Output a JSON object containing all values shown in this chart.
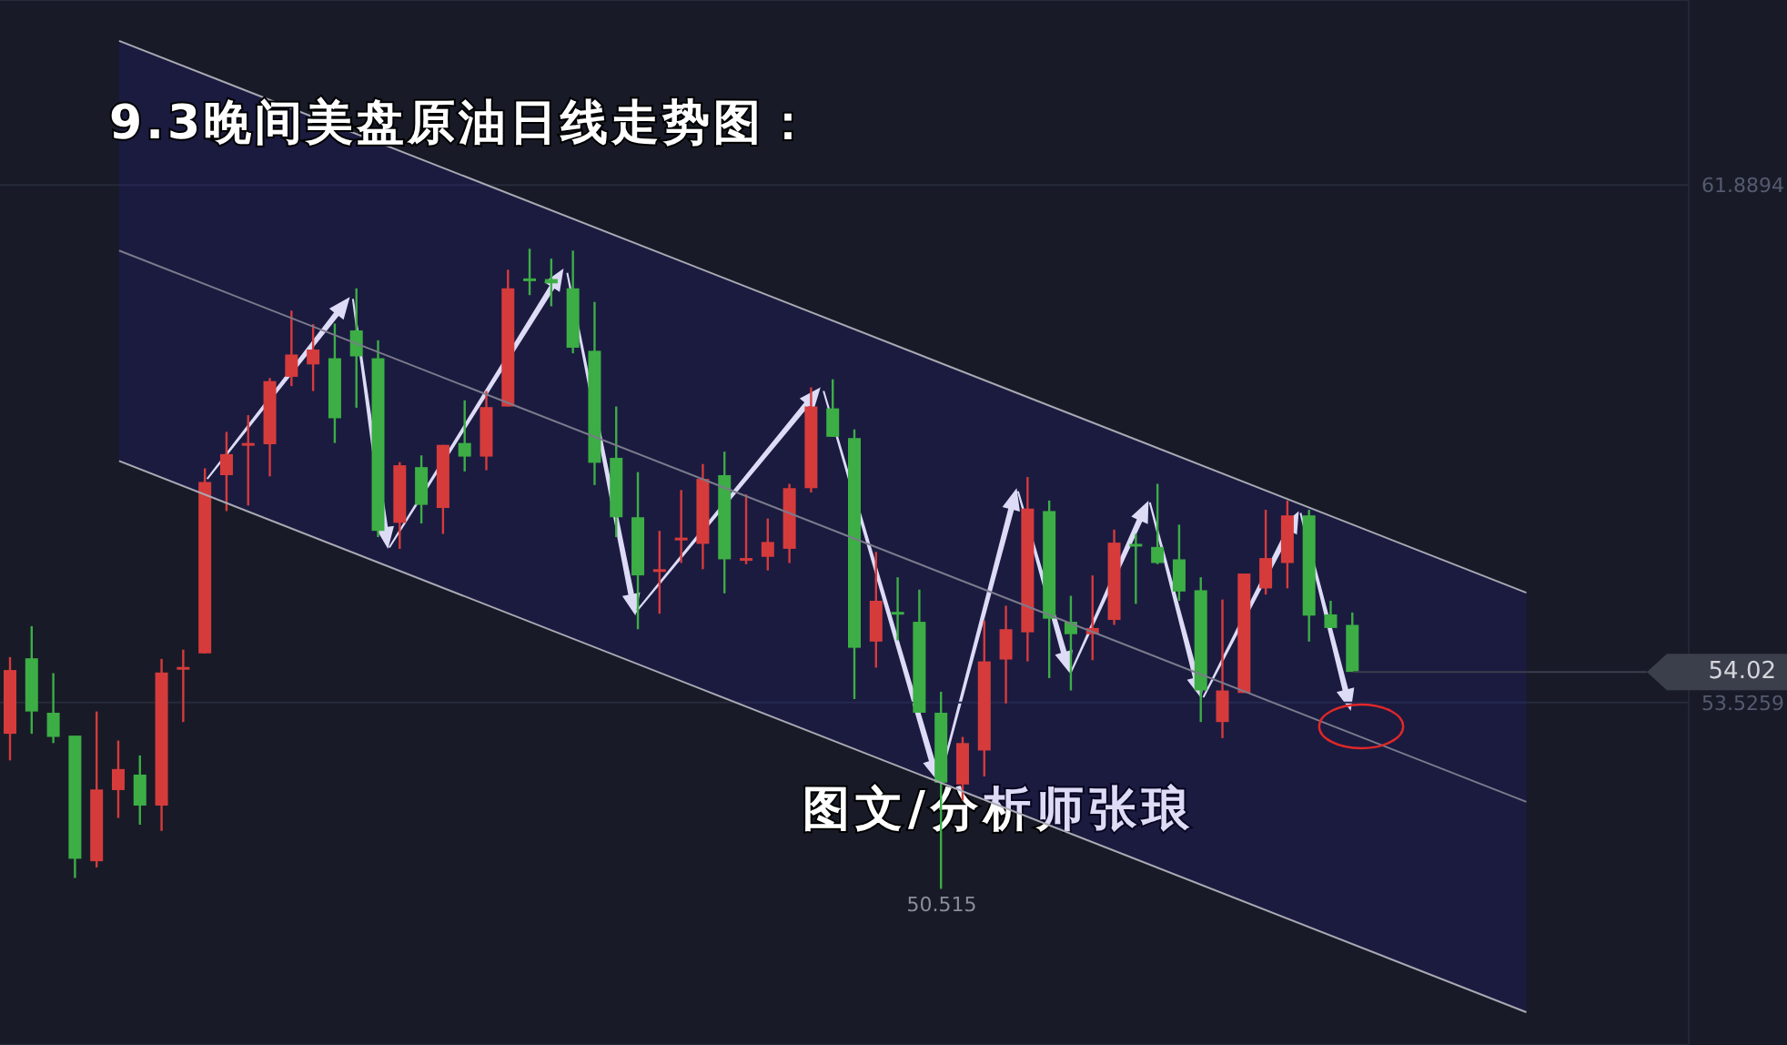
{
  "chart_data": {
    "type": "candlestick",
    "title": "9.3晚间美盘原油日线走势图：",
    "categories": [
      null,
      null,
      null,
      null,
      null,
      null,
      null,
      null,
      null,
      null,
      null,
      null,
      null,
      null,
      null,
      null,
      null,
      null,
      null,
      null,
      null,
      null,
      null,
      null,
      null,
      null,
      null,
      null,
      null,
      null,
      null,
      null,
      null,
      null,
      null,
      null,
      null,
      null,
      null,
      null,
      null,
      null,
      null,
      null,
      null,
      null,
      null,
      null,
      null,
      null,
      null,
      null,
      null,
      null,
      null,
      null,
      null,
      null,
      null,
      null,
      null,
      null,
      null,
      null,
      null,
      null,
      null,
      null,
      null,
      null,
      null,
      null,
      null,
      null,
      null,
      null,
      null,
      null
    ],
    "ohlc": [
      [
        53.02,
        54.26,
        52.59,
        54.05
      ],
      [
        54.24,
        54.76,
        53.02,
        53.38
      ],
      [
        53.36,
        54.0,
        52.87,
        52.97
      ],
      [
        52.99,
        52.99,
        50.69,
        51.0
      ],
      [
        50.96,
        53.38,
        50.86,
        52.12
      ],
      [
        52.11,
        52.91,
        51.66,
        52.45
      ],
      [
        52.36,
        52.67,
        51.55,
        51.86
      ],
      [
        51.86,
        54.23,
        51.45,
        54.01
      ],
      [
        54.07,
        54.38,
        53.21,
        54.1
      ],
      [
        54.32,
        57.31,
        54.32,
        57.09
      ],
      [
        57.2,
        57.9,
        56.62,
        57.54
      ],
      [
        57.69,
        58.17,
        56.71,
        57.72
      ],
      [
        57.7,
        58.77,
        57.18,
        58.72
      ],
      [
        58.79,
        59.86,
        58.64,
        59.15
      ],
      [
        58.99,
        59.64,
        58.56,
        59.23
      ],
      [
        59.09,
        59.65,
        57.72,
        58.12
      ],
      [
        59.54,
        60.22,
        58.29,
        59.12
      ],
      [
        59.09,
        59.38,
        56.2,
        56.3
      ],
      [
        56.43,
        57.41,
        56.01,
        57.36
      ],
      [
        57.33,
        57.52,
        56.42,
        56.72
      ],
      [
        56.67,
        57.69,
        56.25,
        57.69
      ],
      [
        57.72,
        58.41,
        57.26,
        57.5
      ],
      [
        57.5,
        58.56,
        57.28,
        58.3
      ],
      [
        58.31,
        60.52,
        58.31,
        60.22
      ],
      [
        60.38,
        60.86,
        60.11,
        60.35
      ],
      [
        60.37,
        60.7,
        59.93,
        60.3
      ],
      [
        60.22,
        60.83,
        59.17,
        59.26
      ],
      [
        59.21,
        60.0,
        57.04,
        57.4
      ],
      [
        57.48,
        58.31,
        56.2,
        56.52
      ],
      [
        56.52,
        57.25,
        54.71,
        55.58
      ],
      [
        55.65,
        56.3,
        54.96,
        55.68
      ],
      [
        56.16,
        56.96,
        55.78,
        56.19
      ],
      [
        56.09,
        57.38,
        55.68,
        57.14
      ],
      [
        57.2,
        57.58,
        55.29,
        55.84
      ],
      [
        55.83,
        56.89,
        55.76,
        55.86
      ],
      [
        55.88,
        56.5,
        55.66,
        56.12
      ],
      [
        56.01,
        57.06,
        55.78,
        56.99
      ],
      [
        56.99,
        58.62,
        56.92,
        58.31
      ],
      [
        58.28,
        58.75,
        57.82,
        57.82
      ],
      [
        57.8,
        57.94,
        53.58,
        54.41
      ],
      [
        54.51,
        55.96,
        54.09,
        55.17
      ],
      [
        54.99,
        55.55,
        54.53,
        54.96
      ],
      [
        54.83,
        55.35,
        53.36,
        53.36
      ],
      [
        53.36,
        53.7,
        50.515,
        52.23
      ],
      [
        52.2,
        52.97,
        51.94,
        52.87
      ],
      [
        52.75,
        54.85,
        52.33,
        54.19
      ],
      [
        54.22,
        55.09,
        53.51,
        54.71
      ],
      [
        54.66,
        57.17,
        54.19,
        56.66
      ],
      [
        56.62,
        56.79,
        53.92,
        54.88
      ],
      [
        54.83,
        55.25,
        53.72,
        54.63
      ],
      [
        54.63,
        55.58,
        54.21,
        54.73
      ],
      [
        54.86,
        56.32,
        54.78,
        56.11
      ],
      [
        56.09,
        56.25,
        55.12,
        56.06
      ],
      [
        56.04,
        57.06,
        55.76,
        55.78
      ],
      [
        55.84,
        56.4,
        55.17,
        55.32
      ],
      [
        55.34,
        55.55,
        53.21,
        53.72
      ],
      [
        53.21,
        55.19,
        52.95,
        53.72
      ],
      [
        53.68,
        55.61,
        53.68,
        55.61
      ],
      [
        55.37,
        56.64,
        55.27,
        55.86
      ],
      [
        55.78,
        56.79,
        55.37,
        56.55
      ],
      [
        56.55,
        56.64,
        54.51,
        54.93
      ],
      [
        54.95,
        55.17,
        54.73,
        54.73
      ],
      [
        54.78,
        54.98,
        54.02,
        54.02
      ],
      null,
      null,
      null,
      null,
      null,
      null,
      null,
      null,
      null,
      null,
      null,
      null,
      null,
      null,
      null
    ],
    "colors": [
      "#d63b3b",
      "#3cae45",
      "#3cae45",
      "#3cae45",
      "#d63b3b",
      "#d63b3b",
      "#3cae45",
      "#d63b3b",
      "#d63b3b",
      "#d63b3b",
      "#d63b3b",
      "#d63b3b",
      "#d63b3b",
      "#d63b3b",
      "#d63b3b",
      "#3cae45",
      "#3cae45",
      "#3cae45",
      "#d63b3b",
      "#3cae45",
      "#d63b3b",
      "#3cae45",
      "#d63b3b",
      "#d63b3b",
      "#3cae45",
      "#3cae45",
      "#3cae45",
      "#3cae45",
      "#3cae45",
      "#3cae45",
      "#d63b3b",
      "#d63b3b",
      "#d63b3b",
      "#3cae45",
      "#d63b3b",
      "#d63b3b",
      "#d63b3b",
      "#d63b3b",
      "#3cae45",
      "#3cae45",
      "#d63b3b",
      "#3cae45",
      "#3cae45",
      "#3cae45",
      "#d63b3b",
      "#d63b3b",
      "#d63b3b",
      "#d63b3b",
      "#3cae45",
      "#3cae45",
      "#d63b3b",
      "#d63b3b",
      "#3cae45",
      "#3cae45",
      "#3cae45",
      "#3cae45",
      "#d63b3b",
      "#d63b3b",
      "#d63b3b",
      "#d63b3b",
      "#3cae45",
      "#3cae45",
      "#3cae45",
      null,
      null,
      null,
      null,
      null,
      null,
      null,
      null,
      null,
      null,
      null,
      null,
      null,
      null,
      null
    ],
    "series": [
      {
        "type": "line",
        "color": "#7b7b8c",
        "marker": "none",
        "values": [
          null,
          null,
          null,
          null,
          null,
          60.83,
          null,
          null,
          null,
          null,
          null,
          null,
          null,
          null,
          null,
          null,
          null,
          null,
          null,
          null,
          null,
          null,
          null,
          null,
          null,
          null,
          null,
          null,
          null,
          null,
          null,
          null,
          null,
          null,
          null,
          null,
          null,
          null,
          null,
          null,
          null,
          null,
          null,
          null,
          null,
          null,
          null,
          null,
          null,
          null,
          null,
          null,
          null,
          null,
          null,
          null,
          null,
          null,
          null,
          null,
          null,
          null,
          null,
          null,
          null,
          null,
          null,
          null,
          null,
          null,
          51.92,
          null,
          null,
          null,
          null,
          null,
          null,
          null
        ],
        "lower": [
          null,
          null,
          null,
          null,
          null,
          57.43,
          null,
          null,
          null,
          null,
          null,
          null,
          null,
          null,
          null,
          null,
          null,
          null,
          null,
          null,
          null,
          null,
          null,
          null,
          null,
          null,
          null,
          null,
          null,
          null,
          null,
          null,
          null,
          null,
          null,
          null,
          null,
          null,
          null,
          null,
          null,
          null,
          null,
          null,
          null,
          null,
          null,
          null,
          null,
          null,
          null,
          null,
          null,
          null,
          null,
          null,
          null,
          null,
          null,
          null,
          null,
          null,
          null,
          null,
          null,
          null,
          null,
          null,
          null,
          null,
          48.52,
          null,
          null,
          null,
          null,
          null,
          null,
          null
        ],
        "upper": [
          null,
          null,
          null,
          null,
          null,
          64.22,
          null,
          null,
          null,
          null,
          null,
          null,
          null,
          null,
          null,
          null,
          null,
          null,
          null,
          null,
          null,
          null,
          null,
          null,
          null,
          null,
          null,
          null,
          null,
          null,
          null,
          null,
          null,
          null,
          null,
          null,
          null,
          null,
          null,
          null,
          null,
          null,
          null,
          null,
          null,
          null,
          null,
          null,
          null,
          null,
          null,
          null,
          null,
          null,
          null,
          null,
          null,
          null,
          null,
          null,
          null,
          null,
          null,
          null,
          null,
          null,
          null,
          null,
          null,
          null,
          55.3,
          null,
          null,
          null,
          null,
          null,
          null,
          null
        ]
      },
      {
        "type": "line",
        "color": "#a9a9b3",
        "marker": "none",
        "values": [
          null,
          null,
          null,
          null,
          null,
          64.22,
          null,
          null,
          null,
          null,
          null,
          null,
          null,
          null,
          null,
          null,
          null,
          null,
          null,
          null,
          null,
          null,
          null,
          null,
          null,
          null,
          null,
          null,
          null,
          null,
          null,
          null,
          null,
          null,
          null,
          null,
          null,
          null,
          null,
          null,
          null,
          null,
          null,
          null,
          null,
          null,
          null,
          null,
          null,
          null,
          null,
          null,
          null,
          null,
          null,
          null,
          null,
          null,
          null,
          null,
          null,
          null,
          null,
          null,
          null,
          null,
          null,
          null,
          null,
          null,
          55.3,
          null,
          null,
          null,
          null,
          null,
          null,
          null
        ]
      },
      {
        "type": "line",
        "color": "#a9a9b3",
        "marker": "none",
        "values": [
          null,
          null,
          null,
          null,
          null,
          57.43,
          null,
          null,
          null,
          null,
          null,
          null,
          null,
          null,
          null,
          null,
          null,
          null,
          null,
          null,
          null,
          null,
          null,
          null,
          null,
          null,
          null,
          null,
          null,
          null,
          null,
          null,
          null,
          null,
          null,
          null,
          null,
          null,
          null,
          null,
          null,
          null,
          null,
          null,
          null,
          null,
          null,
          null,
          null,
          null,
          null,
          null,
          null,
          null,
          null,
          null,
          null,
          null,
          null,
          null,
          null,
          null,
          null,
          null,
          null,
          null,
          null,
          null,
          null,
          null,
          48.52,
          null,
          null,
          null,
          null,
          null,
          null,
          null
        ]
      }
    ],
    "ylim": [
      47.99,
      64.88
    ],
    "yticks": [
      53.5259,
      61.8894
    ],
    "grid": "y",
    "tick_labels": "y",
    "ref_lines": [
      {
        "axis": "y",
        "value": 54.02,
        "label": "54.02",
        "color": "#3a3e4e"
      }
    ],
    "annotations": [
      "图文/分析师张琅",
      {
        "text": "50.515",
        "y": 50.515
      }
    ]
  }
}
